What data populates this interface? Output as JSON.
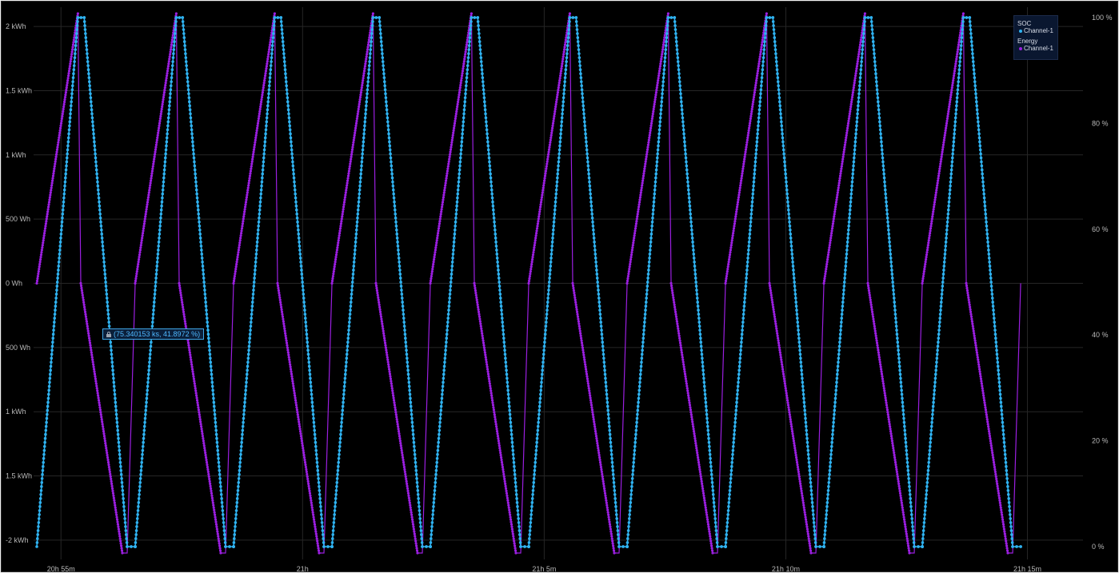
{
  "colors": {
    "soc": "#2fb2f0",
    "energy": "#9b1fe0",
    "grid": "#262626",
    "background": "#000000"
  },
  "chart_data": {
    "type": "line",
    "x_axis": {
      "ticks": [
        "20h 55m",
        "21h",
        "21h 5m",
        "21h 10m",
        "21h 15m"
      ]
    },
    "y_left_axis": {
      "ticks": [
        "2 kWh",
        "1.5 kWh",
        "1 kWh",
        "500 Wh",
        "0 Wh",
        "500 Wh",
        "1 kWh",
        "1.5 kWh",
        "-2 kWh"
      ],
      "range_wh": [
        -2150,
        2150
      ]
    },
    "y_right_axis": {
      "ticks": [
        "100 %",
        "80 %",
        "60 %",
        "40 %",
        "20 %",
        "0 %"
      ],
      "range": [
        0,
        100
      ]
    },
    "x_range": [
      "20h 54m 26s",
      "21h 16m 9s"
    ],
    "cycle_minutes": 2.036,
    "cycles": 10,
    "grid": true,
    "legend_position": "top-right",
    "legend": {
      "groups": [
        {
          "title": "SOC",
          "entries": [
            {
              "label": "Channel-1",
              "color": "#2fb2f0"
            }
          ]
        },
        {
          "title": "Energy",
          "entries": [
            {
              "label": "Channel-1",
              "color": "#9b1fe0"
            }
          ]
        }
      ]
    },
    "series": [
      {
        "name": "SOC",
        "legend_label": "Channel-1",
        "axis": "right",
        "pattern": "triangle, rises from 0 % to 100 % then falls back to 0 %, repeated each cycle",
        "cycle_points": [
          {
            "t_min": 0.0,
            "soc": 0
          },
          {
            "t_min": 0.85,
            "soc": 100
          },
          {
            "t_min": 0.98,
            "soc": 100
          },
          {
            "t_min": 1.87,
            "soc": 0
          },
          {
            "t_min": 2.036,
            "soc": 0
          }
        ]
      },
      {
        "name": "Energy",
        "legend_label": "Channel-1",
        "axis": "left",
        "pattern": "charge ramp 0 to 2.1 kWh, reset to 0, discharge ramp 0 to -2.1 kWh, reset",
        "cycle_points": [
          {
            "t_min": 0.0,
            "wh": 0
          },
          {
            "t_min": 0.85,
            "wh": 2100
          },
          {
            "t_min": 0.91,
            "wh": 0
          },
          {
            "t_min": 1.77,
            "wh": -2100
          },
          {
            "t_min": 1.87,
            "wh": -2100
          },
          {
            "t_min": 2.036,
            "wh": 0
          }
        ]
      }
    ],
    "tooltip": {
      "text": "(75.340153 ks, 41.8972 %)"
    }
  }
}
